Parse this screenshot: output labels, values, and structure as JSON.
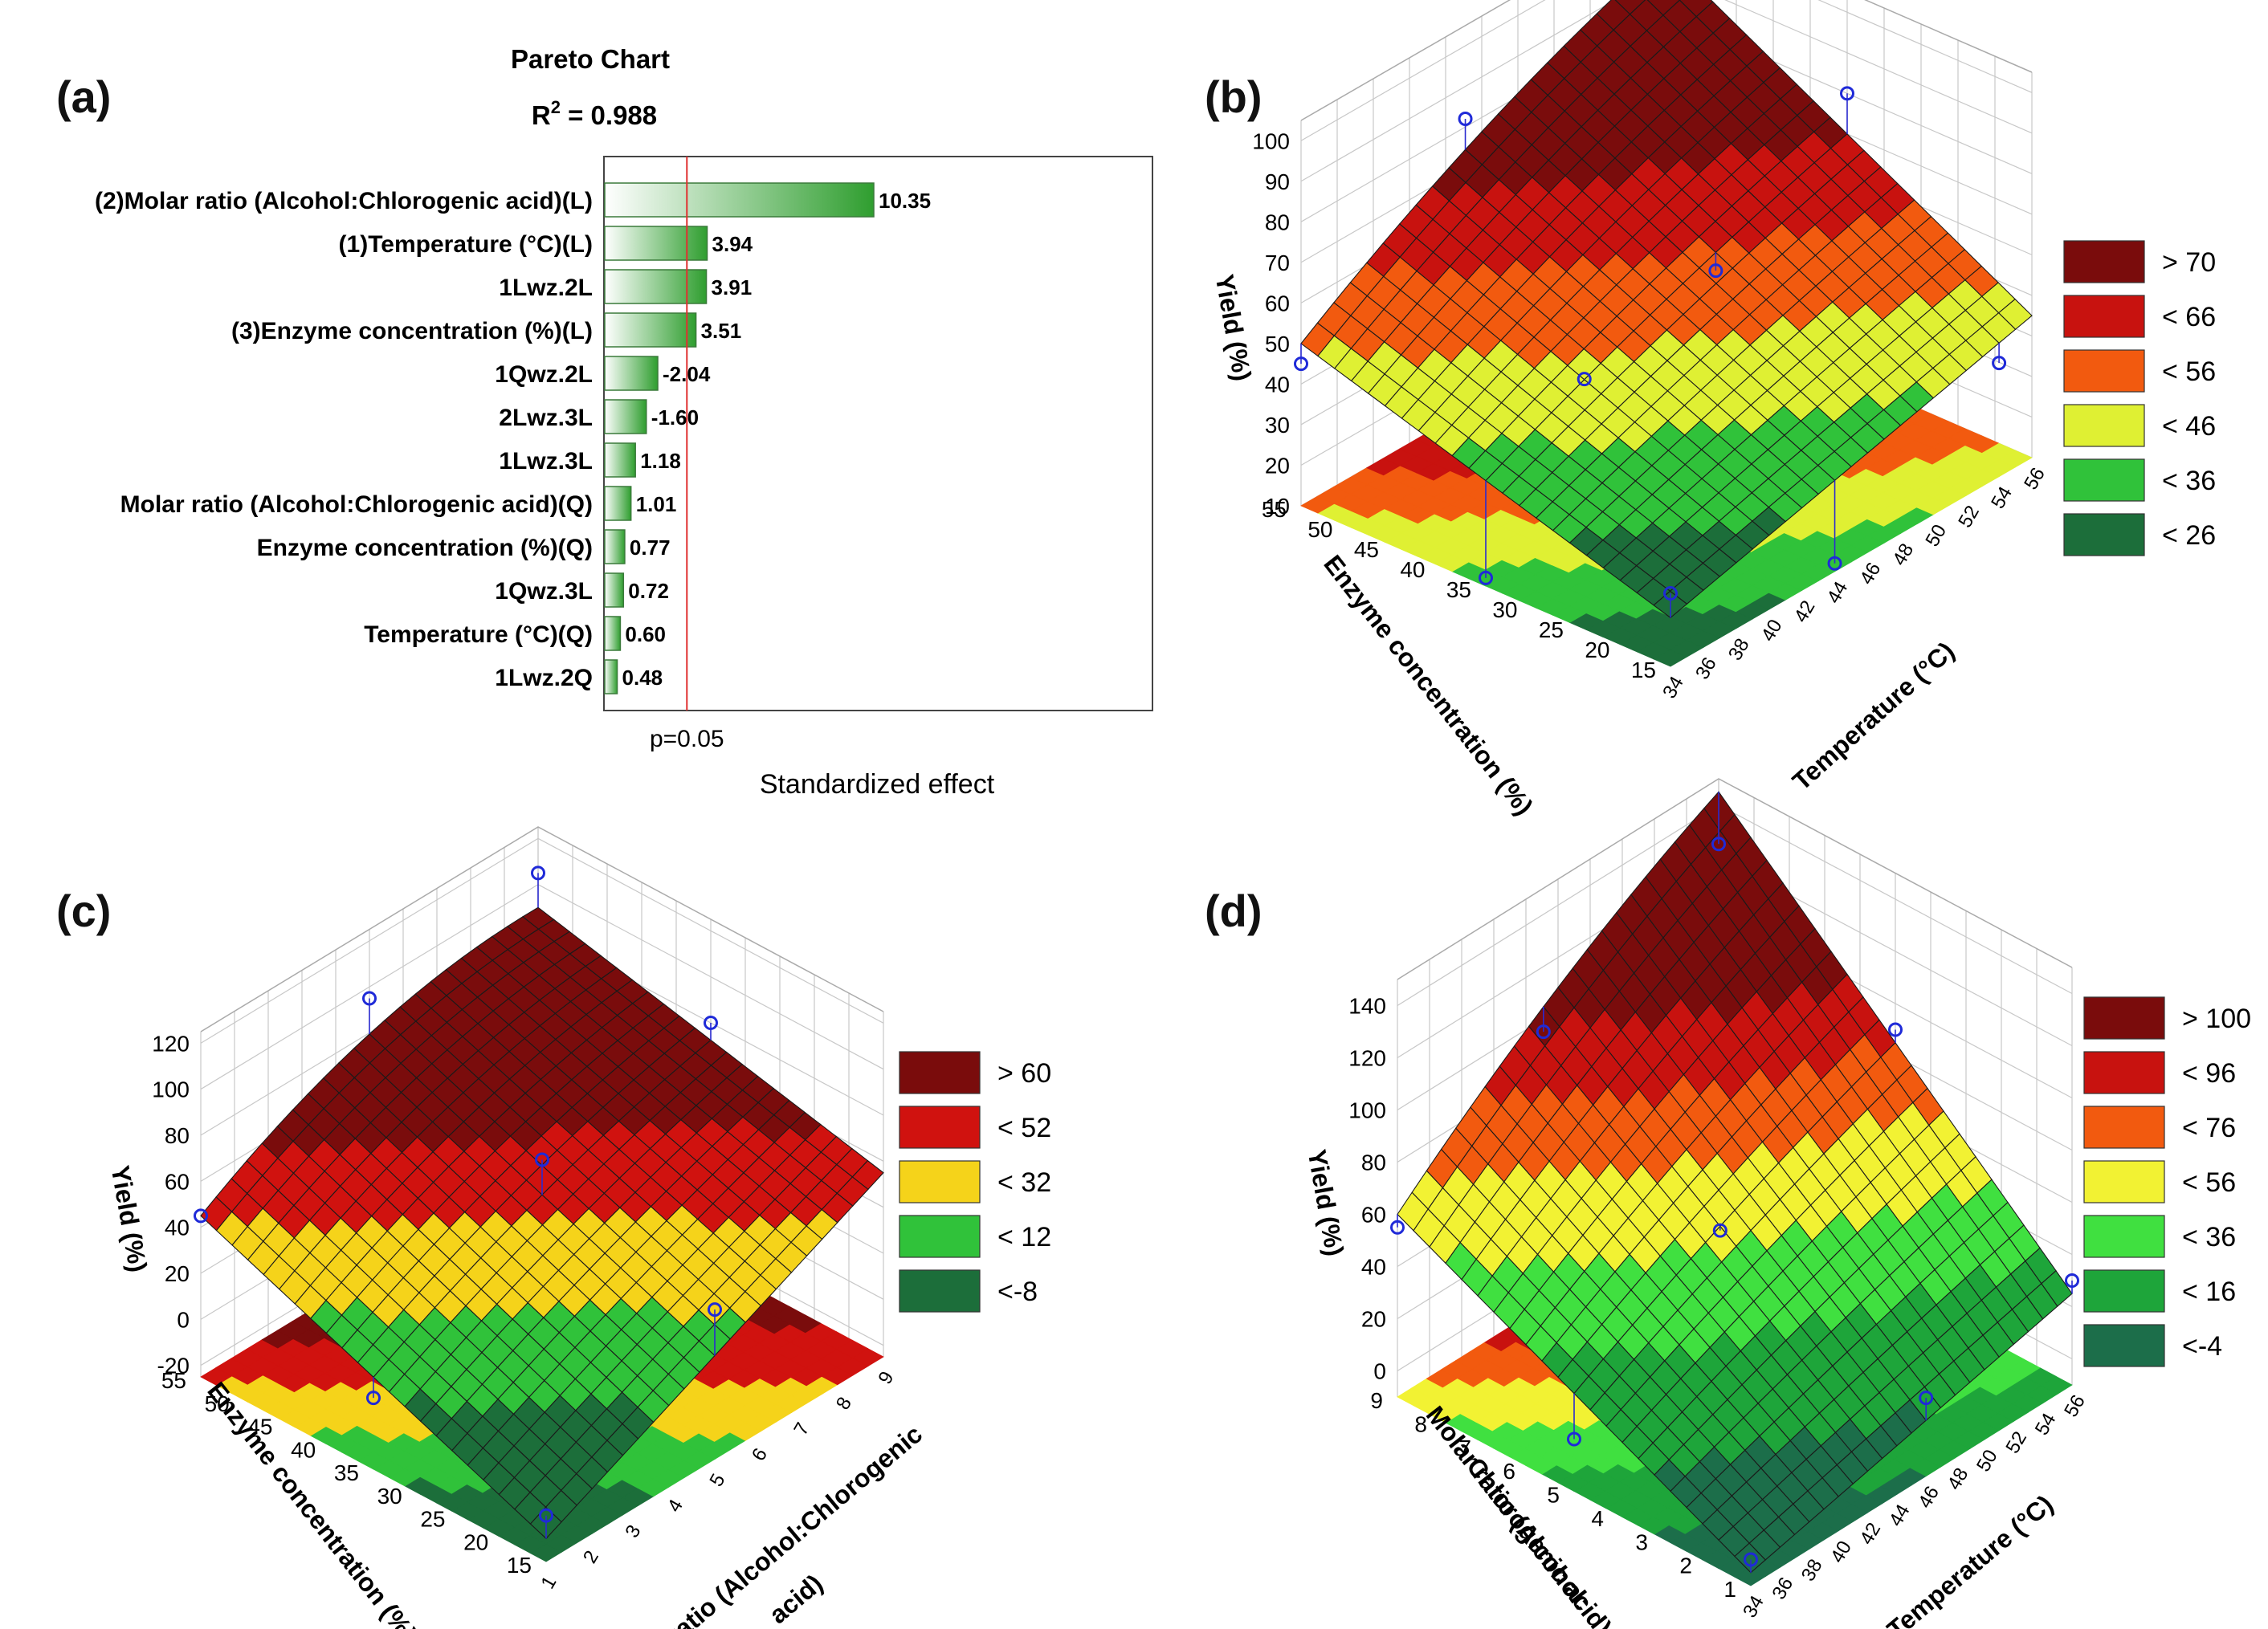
{
  "panels": {
    "a": {
      "tag": "(a)"
    },
    "b": {
      "tag": "(b)"
    },
    "c": {
      "tag": "(c)"
    },
    "d": {
      "tag": "(d)"
    }
  },
  "chart_data": [
    {
      "panel": "a",
      "type": "bar",
      "orientation": "horizontal",
      "title": "Pareto Chart",
      "subtitle_prefix": "R",
      "subtitle_sup": "2",
      "subtitle_suffix": " = 0.988",
      "xlabel": "Standardized effect",
      "reference_line": {
        "value": 2.0,
        "label": "p=0.05",
        "color": "#e03030"
      },
      "xlim": [
        0,
        12
      ],
      "categories": [
        "(2)Molar ratio (Alcohol:Chlorogenic acid)(L)",
        "(1)Temperature (°C)(L)",
        "1Lwz.2L",
        "(3)Enzyme concentration (%)(L)",
        "1Qwz.2L",
        "2Lwz.3L",
        "1Lwz.3L",
        "Molar ratio (Alcohol:Chlorogenic acid)(Q)",
        "Enzyme concentration (%)(Q)",
        "1Qwz.3L",
        "Temperature (°C)(Q)",
        "1Lwz.2Q"
      ],
      "values": [
        10.35,
        3.94,
        3.91,
        3.51,
        -2.04,
        -1.6,
        1.18,
        1.01,
        0.77,
        0.72,
        0.6,
        0.48
      ],
      "value_labels": [
        "10.35",
        "3.94",
        "3.91",
        "3.51",
        "-2.04",
        "-1.60",
        "1.18",
        "1.01",
        "0.77",
        "0.72",
        "0.60",
        "0.48"
      ],
      "colors": {
        "bar_fill_end": "#2f9e2f",
        "bar_fill_start": "#ffffff",
        "bar_stroke": "#3a7a3a"
      }
    },
    {
      "panel": "b",
      "type": "surface3d",
      "xlabel": "Temperature (°C)",
      "ylabel": "Enzyme concentration (%)",
      "zlabel": "Yield (%)",
      "x_ticks": [
        "34",
        "36",
        "38",
        "40",
        "42",
        "44",
        "46",
        "48",
        "50",
        "52",
        "54",
        "56"
      ],
      "y_ticks": [
        "15",
        "20",
        "25",
        "30",
        "35",
        "40",
        "45",
        "50",
        "55"
      ],
      "z_ticks": [
        "10",
        "20",
        "30",
        "40",
        "50",
        "60",
        "70",
        "80",
        "90",
        "100"
      ],
      "zlim": [
        10,
        105
      ],
      "surface_corners": {
        "low_x_low_y": 22,
        "high_x_low_y": 45,
        "low_x_high_y": 50,
        "high_x_high_y": 95
      },
      "points": [
        {
          "x": 34,
          "y": 55,
          "z": 45
        },
        {
          "x": 44,
          "y": 55,
          "z": 82
        },
        {
          "x": 56,
          "y": 55,
          "z": 98
        },
        {
          "x": 34,
          "y": 35,
          "z": 12
        },
        {
          "x": 40,
          "y": 35,
          "z": 47
        },
        {
          "x": 48,
          "y": 35,
          "z": 55
        },
        {
          "x": 56,
          "y": 35,
          "z": 80
        },
        {
          "x": 34,
          "y": 15,
          "z": 28
        },
        {
          "x": 44,
          "y": 15,
          "z": 12
        },
        {
          "x": 54,
          "y": 15,
          "z": 38
        }
      ],
      "legend": [
        {
          "label": "> 70",
          "color": "#7a0c0c"
        },
        {
          "label": "< 66",
          "color": "#c8120f"
        },
        {
          "label": "< 56",
          "color": "#f25a0f"
        },
        {
          "label": "< 46",
          "color": "#dff033"
        },
        {
          "label": "< 36",
          "color": "#30c23a"
        },
        {
          "label": "< 26",
          "color": "#1c6e3a"
        }
      ]
    },
    {
      "panel": "c",
      "type": "surface3d",
      "xlabel": "Molar ratio (Alcohol:Chlorogenic acid)",
      "ylabel": "Enzyme concentration (%)",
      "zlabel": "Yield (%)",
      "x_ticks": [
        "1",
        "2",
        "3",
        "4",
        "5",
        "6",
        "7",
        "8",
        "9"
      ],
      "y_ticks": [
        "15",
        "20",
        "25",
        "30",
        "35",
        "40",
        "45",
        "50",
        "55"
      ],
      "z_ticks": [
        "-20",
        "0",
        "20",
        "40",
        "60",
        "80",
        "100",
        "120"
      ],
      "zlim": [
        -25,
        125
      ],
      "surface_corners": {
        "low_x_low_y": -15,
        "high_x_low_y": 55,
        "low_x_high_y": 45,
        "high_x_high_y": 90
      },
      "points": [
        {
          "x": 1,
          "y": 55,
          "z": 45
        },
        {
          "x": 5,
          "y": 55,
          "z": 95
        },
        {
          "x": 9,
          "y": 55,
          "z": 105
        },
        {
          "x": 1,
          "y": 35,
          "z": 6
        },
        {
          "x": 5,
          "y": 35,
          "z": 65
        },
        {
          "x": 9,
          "y": 35,
          "z": 80
        },
        {
          "x": 1,
          "y": 15,
          "z": -5
        },
        {
          "x": 5,
          "y": 15,
          "z": 40
        }
      ],
      "legend": [
        {
          "label": "> 60",
          "color": "#7a0c0c"
        },
        {
          "label": "< 52",
          "color": "#d0120f"
        },
        {
          "label": "< 32",
          "color": "#f5d31a"
        },
        {
          "label": "< 12",
          "color": "#30c23a"
        },
        {
          "label": "<-8",
          "color": "#1c6e3a"
        }
      ]
    },
    {
      "panel": "d",
      "type": "surface3d",
      "xlabel": "Temperature (°C)",
      "ylabel": "Molar ratio (Alcohol: Chlorogenic acid)",
      "zlabel": "Yield (%)",
      "x_ticks": [
        "34",
        "36",
        "38",
        "40",
        "42",
        "44",
        "46",
        "48",
        "50",
        "52",
        "54",
        "56"
      ],
      "y_ticks": [
        "1",
        "2",
        "3",
        "4",
        "5",
        "6",
        "7",
        "8",
        "9"
      ],
      "z_ticks": [
        "0",
        "20",
        "40",
        "60",
        "80",
        "100",
        "120",
        "140"
      ],
      "zlim": [
        -10,
        150
      ],
      "surface_corners": {
        "low_x_low_y": -5,
        "high_x_low_y": 25,
        "low_x_high_y": 60,
        "high_x_high_y": 145
      },
      "points": [
        {
          "x": 34,
          "y": 9,
          "z": 55
        },
        {
          "x": 44,
          "y": 9,
          "z": 95
        },
        {
          "x": 56,
          "y": 9,
          "z": 125
        },
        {
          "x": 34,
          "y": 5,
          "z": 10
        },
        {
          "x": 44,
          "y": 5,
          "z": 55
        },
        {
          "x": 56,
          "y": 5,
          "z": 90
        },
        {
          "x": 34,
          "y": 1,
          "z": 0
        },
        {
          "x": 46,
          "y": 1,
          "z": 20
        },
        {
          "x": 56,
          "y": 1,
          "z": 30
        }
      ],
      "legend": [
        {
          "label": "> 100",
          "color": "#7a0c0c"
        },
        {
          "label": "< 96",
          "color": "#c8120f"
        },
        {
          "label": "< 76",
          "color": "#f25a0f"
        },
        {
          "label": "< 56",
          "color": "#f2f233"
        },
        {
          "label": "< 36",
          "color": "#40e040"
        },
        {
          "label": "< 16",
          "color": "#1ea53a"
        },
        {
          "label": "<-4",
          "color": "#1c6e4a"
        }
      ]
    }
  ]
}
